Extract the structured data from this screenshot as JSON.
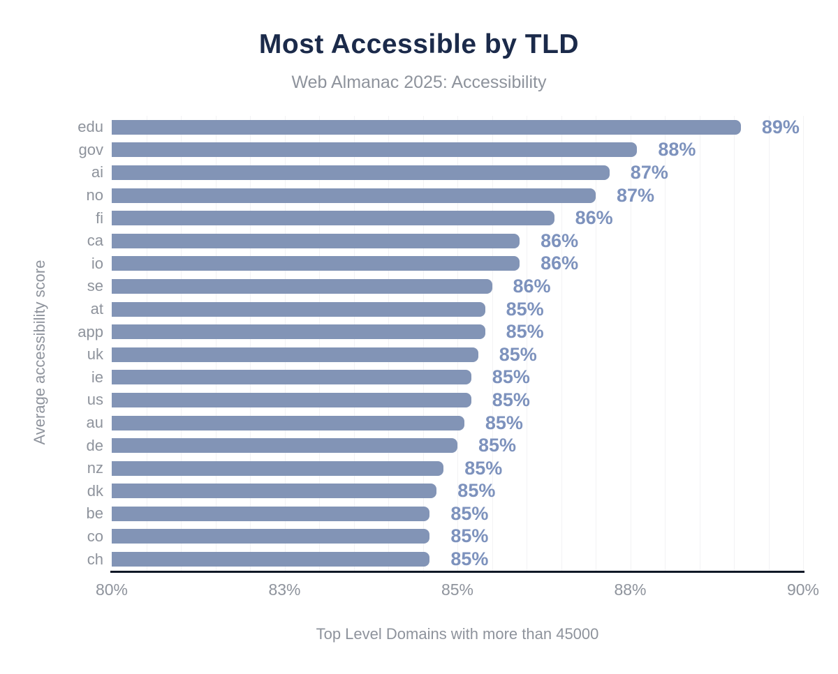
{
  "title": "Most Accessible by TLD",
  "subtitle": "Web Almanac 2025: Accessibility",
  "chart_data": {
    "type": "bar",
    "orientation": "horizontal",
    "title": "Most Accessible by TLD",
    "subtitle": "Web Almanac 2025: Accessibility",
    "xlabel": "Top Level Domains with more than 45000",
    "ylabel": "Average accessibility score",
    "xlim": [
      80,
      90
    ],
    "grid": "vertical minor gridlines every 0.5%",
    "legend": "none",
    "categories": [
      "edu",
      "gov",
      "ai",
      "no",
      "fi",
      "ca",
      "io",
      "se",
      "at",
      "app",
      "uk",
      "ie",
      "us",
      "au",
      "de",
      "nz",
      "dk",
      "be",
      "co",
      "ch"
    ],
    "values": [
      89.1,
      87.6,
      87.2,
      87.0,
      86.4,
      85.9,
      85.9,
      85.5,
      85.4,
      85.4,
      85.3,
      85.2,
      85.2,
      85.1,
      85.0,
      84.8,
      84.7,
      84.6,
      84.6,
      84.6
    ],
    "value_labels": [
      "89%",
      "88%",
      "87%",
      "87%",
      "86%",
      "86%",
      "86%",
      "86%",
      "85%",
      "85%",
      "85%",
      "85%",
      "85%",
      "85%",
      "85%",
      "85%",
      "85%",
      "85%",
      "85%",
      "85%"
    ],
    "xticks": {
      "positions": [
        80,
        82.5,
        85,
        87.5,
        90
      ],
      "labels": [
        "80%",
        "83%",
        "85%",
        "88%",
        "90%"
      ]
    }
  },
  "colors": {
    "bar": "#8294b6",
    "value_label": "#7d92bd",
    "title": "#1b2a4a",
    "muted_text": "#8e939c",
    "axis_line": "#101826",
    "gridline": "#f2f2f4",
    "background": "#ffffff"
  }
}
